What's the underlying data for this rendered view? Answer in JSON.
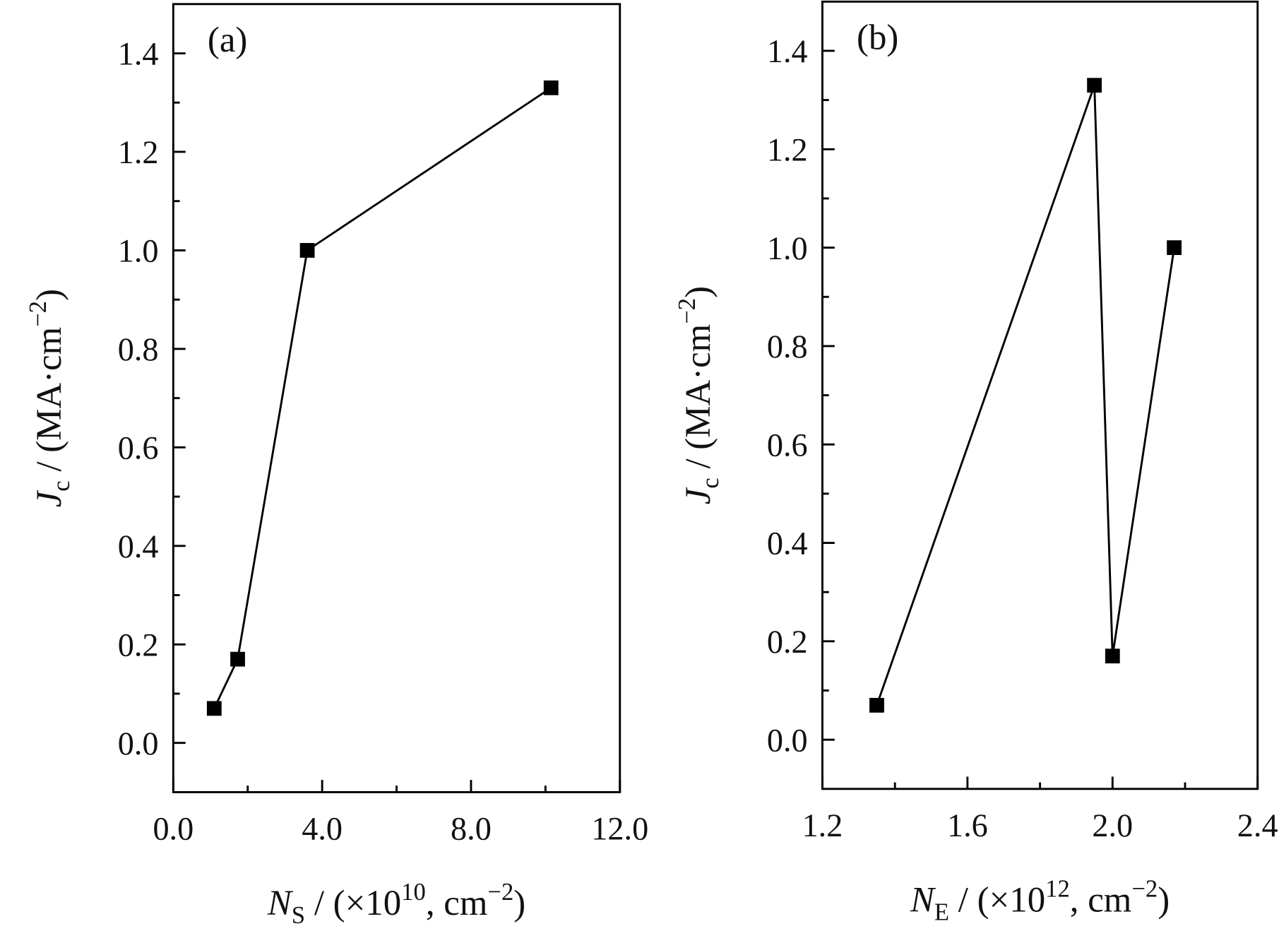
{
  "chart_data": [
    {
      "type": "line",
      "label": "(a)",
      "xlabel": [
        {
          "text": "N",
          "italic": true
        },
        {
          "text": "S",
          "sub": true
        },
        {
          "text": " / (×10"
        },
        {
          "text": "10",
          "sup": true
        },
        {
          "text": ", cm"
        },
        {
          "text": "−2",
          "sup": true
        },
        {
          "text": ")"
        }
      ],
      "ylabel": [
        {
          "text": "J",
          "italic": true
        },
        {
          "text": "c",
          "sub": true
        },
        {
          "text": " / (MA·cm"
        },
        {
          "text": "−2",
          "sup": true
        },
        {
          "text": ")"
        }
      ],
      "x": [
        1.1,
        1.73,
        3.6,
        10.15
      ],
      "series": [
        {
          "color": "#000000",
          "values": [
            0.07,
            0.17,
            1.0,
            1.33
          ]
        }
      ],
      "xlim": [
        0,
        12
      ],
      "ylim": [
        -0.1,
        1.5
      ],
      "xticks": [
        {
          "value": 0,
          "label": "0.0"
        },
        {
          "value": 4,
          "label": "4.0"
        },
        {
          "value": 8,
          "label": "8.0"
        },
        {
          "value": 12,
          "label": "12.0"
        }
      ],
      "xminorticks": [
        2,
        6,
        10
      ],
      "yticks": [
        {
          "value": 0,
          "label": "0.0"
        },
        0.2,
        0.4,
        0.6,
        0.8,
        {
          "value": 1,
          "label": "1.0"
        },
        1.2,
        1.4
      ],
      "yminorticks": [
        0.1,
        0.3,
        0.5,
        0.7,
        0.9,
        1.1,
        1.3
      ]
    },
    {
      "type": "line",
      "label": "(b)",
      "xlabel": [
        {
          "text": "N",
          "italic": true
        },
        {
          "text": "E",
          "sub": true
        },
        {
          "text": " / (×10"
        },
        {
          "text": "12",
          "sup": true
        },
        {
          "text": ", cm"
        },
        {
          "text": "−2",
          "sup": true
        },
        {
          "text": ")"
        }
      ],
      "ylabel": [
        {
          "text": "J",
          "italic": true
        },
        {
          "text": "c",
          "sub": true
        },
        {
          "text": " / (MA·cm"
        },
        {
          "text": "−2",
          "sup": true
        },
        {
          "text": ")"
        }
      ],
      "x": [
        1.35,
        1.95,
        2.0,
        2.17
      ],
      "series": [
        {
          "color": "#000000",
          "values": [
            0.07,
            1.33,
            0.17,
            1.0
          ]
        }
      ],
      "xlim": [
        1.2,
        2.4
      ],
      "ylim": [
        -0.1,
        1.5
      ],
      "xticks": [
        1.2,
        1.6,
        {
          "value": 2,
          "label": "2.0"
        },
        2.4
      ],
      "xminorticks": [
        1.4,
        1.8,
        2.2
      ],
      "yticks": [
        {
          "value": 0,
          "label": "0.0"
        },
        0.2,
        0.4,
        0.6,
        0.8,
        {
          "value": 1,
          "label": "1.0"
        },
        1.2,
        1.4
      ],
      "yminorticks": [
        0.1,
        0.3,
        0.5,
        0.7,
        0.9,
        1.1,
        1.3
      ]
    }
  ]
}
